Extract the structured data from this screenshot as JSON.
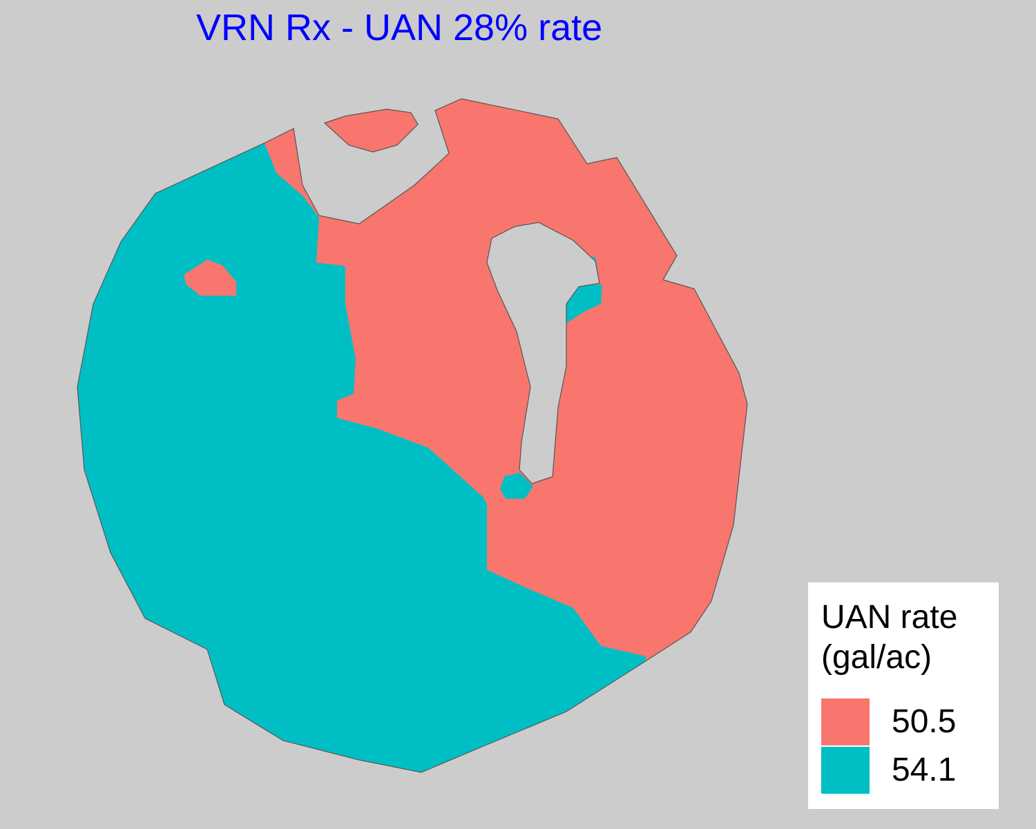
{
  "title": "VRN Rx - UAN 28% rate",
  "legend": {
    "title": "UAN rate\n(gal/ac)",
    "items": [
      {
        "label": "50.5",
        "value": 50.5,
        "color": "#f8766d"
      },
      {
        "label": "54.1",
        "value": 54.1,
        "color": "#00bfc4"
      }
    ]
  },
  "colors": {
    "background": "#cccccc",
    "outline": "#555555"
  }
}
